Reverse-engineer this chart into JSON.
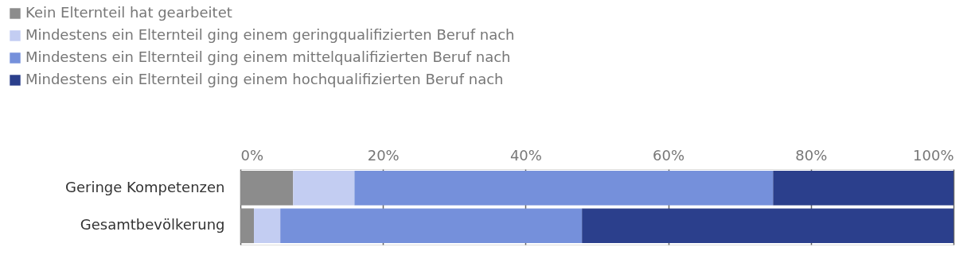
{
  "chart_data": {
    "type": "bar",
    "orientation": "horizontal",
    "stacked": true,
    "categories": [
      "Geringe Kompetenzen",
      "Gesamtbevölkerung"
    ],
    "series": [
      {
        "name": "Kein Elternteil hat gearbeitet",
        "color": "#8c8c8c",
        "values": [
          7.4,
          1.9
        ]
      },
      {
        "name": "Mindestens ein Elternteil ging einem geringqualifizierten Beruf nach",
        "color": "#c3cdf2",
        "values": [
          8.6,
          3.7
        ]
      },
      {
        "name": "Mindestens ein Elternteil ging einem mittelqualifizierten Beruf nach",
        "color": "#7590db",
        "values": [
          58.7,
          42.3
        ]
      },
      {
        "name": "Mindestens ein Elternteil ging einem hochqualifizierten Beruf nach",
        "color": "#2b3f8c",
        "values": [
          25.3,
          52.1
        ]
      }
    ],
    "xlim": [
      0,
      100
    ],
    "xticks": [
      {
        "value": 0,
        "label": "0%"
      },
      {
        "value": 20,
        "label": "20%"
      },
      {
        "value": 40,
        "label": "40%"
      },
      {
        "value": 60,
        "label": "60%"
      },
      {
        "value": 80,
        "label": "80%"
      },
      {
        "value": 100,
        "label": "100%"
      }
    ],
    "grid": "x",
    "legend": "top left"
  }
}
